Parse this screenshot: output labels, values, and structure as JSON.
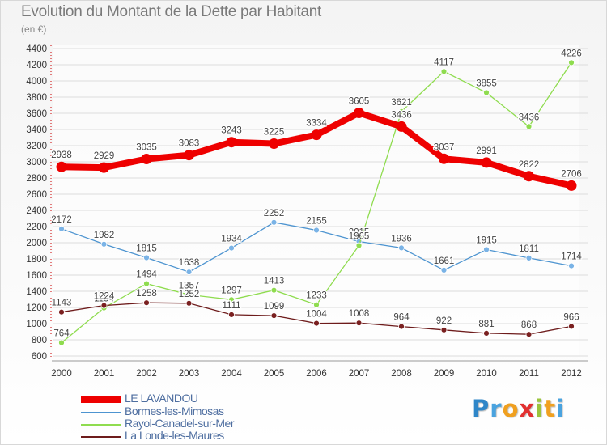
{
  "header": {
    "title": "Evolution du Montant de la Dette par Habitant",
    "subtitle": "(en €)"
  },
  "brand": {
    "letters": [
      "P",
      "r",
      "o",
      "x",
      "i",
      "t",
      "i"
    ],
    "colors": [
      "#2f86c8",
      "#4aa3df",
      "#f0a020",
      "#e23030",
      "#9bc53d",
      "#f0a020",
      "#4aa3df"
    ]
  },
  "legend": {
    "items": [
      {
        "label": "LE LAVANDOU",
        "color": "#ee0000"
      },
      {
        "label": "Bormes-les-Mimosas",
        "color": "#4d94d0"
      },
      {
        "label": "Rayol-Canadel-sur-Mer",
        "color": "#8fdc4f"
      },
      {
        "label": "La Londe-les-Maures",
        "color": "#6e1c1c"
      }
    ]
  },
  "chart_data": {
    "type": "line",
    "title": "Evolution du Montant de la Dette par Habitant",
    "subtitle": "(en €)",
    "x": [
      "2000",
      "2001",
      "2002",
      "2003",
      "2004",
      "2005",
      "2006",
      "2007",
      "2008",
      "2009",
      "2010",
      "2011",
      "2012"
    ],
    "yticks": [
      600,
      800,
      1000,
      1200,
      1400,
      1600,
      1800,
      2000,
      2200,
      2400,
      2600,
      2800,
      3000,
      3200,
      3400,
      3600,
      3800,
      4000,
      4200,
      4400
    ],
    "ylim": [
      600,
      4400
    ],
    "grid": true,
    "legend_position": "bottom-left",
    "series": [
      {
        "name": "LE LAVANDOU",
        "color": "#ee0000",
        "highlight": true,
        "values": [
          2938,
          2929,
          3035,
          3083,
          3243,
          3225,
          3334,
          3605,
          3436,
          3037,
          2991,
          2822,
          2706
        ],
        "labels": [
          "2938",
          "2929",
          "3035",
          "3083",
          "3243",
          "3225",
          "3334",
          "3605",
          "3436",
          "3037",
          "2991",
          "2822",
          "2706"
        ]
      },
      {
        "name": "Bormes-les-Mimosas",
        "color": "#4d94d0",
        "marker": "#7ab3e6",
        "values": [
          2172,
          1982,
          1815,
          1638,
          1934,
          2252,
          2155,
          2015,
          1936,
          1661,
          1915,
          1811,
          1714
        ],
        "labels": [
          "2172",
          "1982",
          "1815",
          "1638",
          "1934",
          "2252",
          "2155",
          "2015",
          "1936",
          "1661",
          "1915",
          "1811",
          "1714"
        ]
      },
      {
        "name": "Rayol-Canadel-sur-Mer",
        "color": "#8fdc4f",
        "marker": "#8fdc4f",
        "values": [
          764,
          1194,
          1494,
          1357,
          1297,
          1413,
          1233,
          1965,
          3621,
          4117,
          3855,
          3436,
          4226
        ],
        "labels": [
          "764",
          "1194",
          "1494",
          "1357",
          "1297",
          "1413",
          "1233",
          "1965",
          "3621",
          "4117",
          "3855",
          "3436",
          "4226"
        ]
      },
      {
        "name": "La Londe-les-Maures",
        "color": "#6e1c1c",
        "marker": "#7a2020",
        "values": [
          1143,
          1224,
          1258,
          1252,
          1111,
          1099,
          1004,
          1008,
          964,
          922,
          881,
          868,
          966
        ],
        "labels": [
          "1143",
          "1224",
          "1258",
          "1252",
          "1111",
          "1099",
          "1004",
          "1008",
          "964",
          "922",
          "881",
          "868",
          "966"
        ]
      }
    ]
  }
}
